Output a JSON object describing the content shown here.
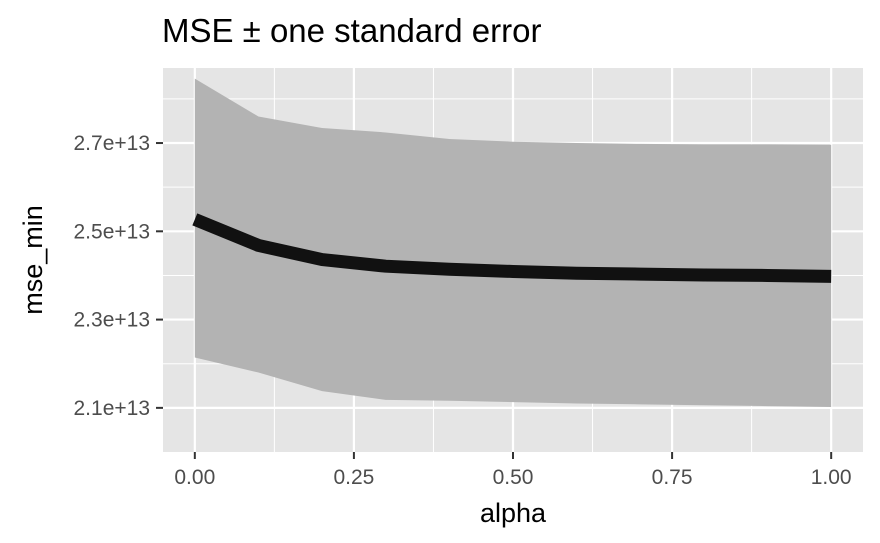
{
  "chart_data": {
    "type": "line",
    "title": "MSE ± one standard error",
    "xlabel": "alpha",
    "ylabel": "mse_min",
    "xlim": [
      -0.05,
      1.05
    ],
    "ylim": [
      20000000000000.0,
      28700000000000.0
    ],
    "x_ticks": [
      0.0,
      0.25,
      0.5,
      0.75,
      1.0
    ],
    "x_tick_labels": [
      "0.00",
      "0.25",
      "0.50",
      "0.75",
      "1.00"
    ],
    "y_ticks": [
      21000000000000.0,
      23000000000000.0,
      25000000000000.0,
      27000000000000.0
    ],
    "y_tick_labels": [
      "2.1e+13",
      "2.3e+13",
      "2.5e+13",
      "2.7e+13"
    ],
    "grid": true,
    "series": [
      {
        "x": [
          0.0,
          0.1,
          0.2,
          0.3,
          0.4,
          0.5,
          0.6,
          0.7,
          0.8,
          0.9,
          1.0
        ],
        "values": [
          25270000000000.0,
          24680000000000.0,
          24360000000000.0,
          24210000000000.0,
          24140000000000.0,
          24090000000000.0,
          24050000000000.0,
          24030000000000.0,
          24010000000000.0,
          24000000000000.0,
          23980000000000.0
        ],
        "upper": [
          28460000000000.0,
          27600000000000.0,
          27340000000000.0,
          27240000000000.0,
          27090000000000.0,
          27030000000000.0,
          27000000000000.0,
          26980000000000.0,
          26970000000000.0,
          26970000000000.0,
          26960000000000.0
        ],
        "lower": [
          22140000000000.0,
          21800000000000.0,
          21380000000000.0,
          21180000000000.0,
          21160000000000.0,
          21130000000000.0,
          21100000000000.0,
          21080000000000.0,
          21060000000000.0,
          21040000000000.0,
          21020000000000.0
        ],
        "line_color": "#111111",
        "ribbon_color": "#b3b3b3"
      }
    ],
    "panel_color": "#e5e5e5",
    "grid_color": "#ffffff"
  }
}
